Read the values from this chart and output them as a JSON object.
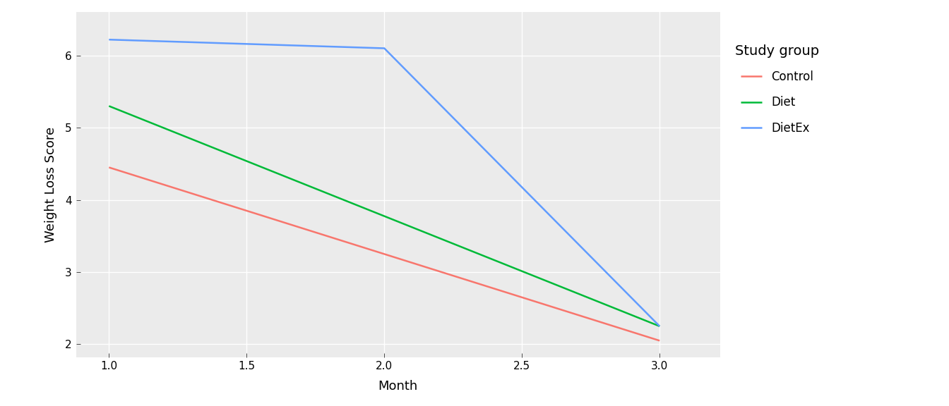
{
  "series": [
    {
      "label": "Control",
      "color": "#F8766D",
      "x": [
        1.0,
        3.0
      ],
      "y": [
        4.45,
        2.05
      ]
    },
    {
      "label": "Diet",
      "color": "#00BA38",
      "x": [
        1.0,
        3.0
      ],
      "y": [
        5.3,
        2.25
      ]
    },
    {
      "label": "DietEx",
      "color": "#619CFF",
      "x": [
        1.0,
        2.0,
        3.0
      ],
      "y": [
        6.22,
        6.1,
        2.25
      ]
    }
  ],
  "xlabel": "Month",
  "ylabel": "Weight Loss Score",
  "legend_title": "Study group",
  "xlim": [
    0.88,
    3.22
  ],
  "ylim": [
    1.82,
    6.6
  ],
  "xticks": [
    1.0,
    1.5,
    2.0,
    2.5,
    3.0
  ],
  "yticks": [
    2,
    3,
    4,
    5,
    6
  ],
  "panel_color": "#EBEBEB",
  "figure_color": "#FFFFFF",
  "grid_color": "#FFFFFF",
  "line_width": 1.8,
  "axis_label_fontsize": 13,
  "tick_fontsize": 11,
  "legend_fontsize": 12,
  "legend_title_fontsize": 13
}
